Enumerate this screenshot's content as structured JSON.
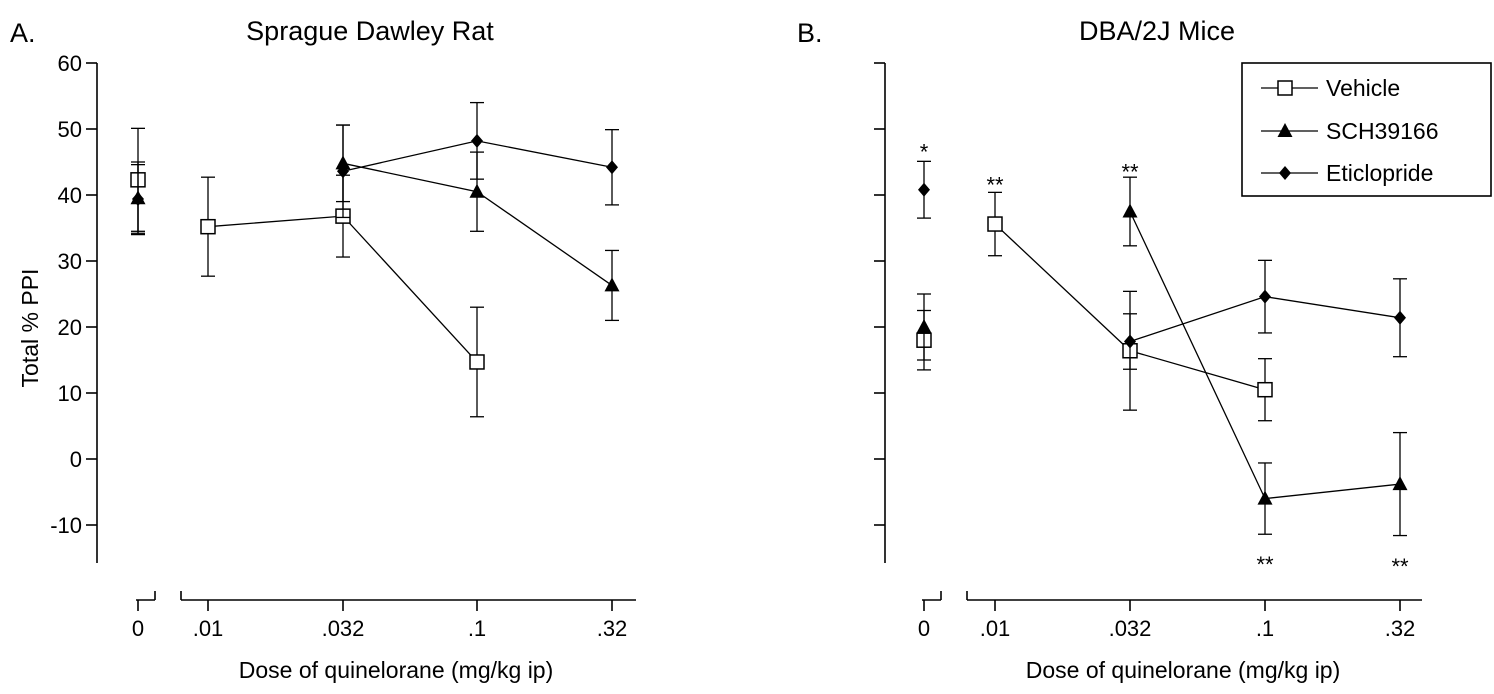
{
  "chart_data": [
    {
      "type": "line",
      "panel_label": "A.",
      "title": "Sprague Dawley Rat",
      "xlabel": "Dose of quinelorane (mg/kg ip)",
      "ylabel": "Total % PPI",
      "categories": [
        "0",
        ".01",
        ".032",
        ".1",
        ".32"
      ],
      "ylim": [
        -15,
        60
      ],
      "yticks": [
        "60",
        "50",
        "40",
        "30",
        "20",
        "10",
        "0",
        "-10"
      ],
      "ytick_values": [
        60,
        50,
        40,
        30,
        20,
        10,
        0,
        -10
      ],
      "series": [
        {
          "name": "Vehicle",
          "marker": "open-square",
          "x": [
            "0",
            ".01",
            ".032",
            ".1"
          ],
          "values": [
            42.3,
            35.2,
            36.8,
            14.7
          ],
          "errors": [
            7.8,
            7.5,
            6.2,
            8.3
          ],
          "connect_from": 1
        },
        {
          "name": "SCH39166",
          "marker": "filled-triangle",
          "x": [
            "0",
            ".032",
            ".1",
            ".32"
          ],
          "values": [
            39.5,
            44.8,
            40.5,
            26.3
          ],
          "errors": [
            5.5,
            5.8,
            6.0,
            5.3
          ],
          "connect_from": 1
        },
        {
          "name": "Eticlopride",
          "marker": "filled-diamond",
          "x": [
            "0",
            ".032",
            ".1",
            ".32"
          ],
          "values": [
            39.4,
            43.6,
            48.2,
            44.2
          ],
          "errors": [
            5.2,
            7.0,
            5.8,
            5.7
          ],
          "connect_from": 1
        }
      ],
      "annotations": []
    },
    {
      "type": "line",
      "panel_label": "B.",
      "title": "DBA/2J Mice",
      "xlabel": "Dose of quinelorane (mg/kg ip)",
      "ylabel": "",
      "categories": [
        "0",
        ".01",
        ".032",
        ".1",
        ".32"
      ],
      "ylim": [
        -15,
        60
      ],
      "yticks": [],
      "ytick_values": [
        60,
        50,
        40,
        30,
        20,
        10,
        0,
        -10
      ],
      "legend": "top-right",
      "series": [
        {
          "name": "Vehicle",
          "marker": "open-square",
          "x": [
            "0",
            ".01",
            ".032",
            ".1"
          ],
          "values": [
            18.0,
            35.6,
            16.4,
            10.5
          ],
          "errors": [
            4.5,
            4.8,
            9.0,
            4.7
          ],
          "connect_from": 1
        },
        {
          "name": "SCH39166",
          "marker": "filled-triangle",
          "x": [
            "0",
            ".032",
            ".1",
            ".32"
          ],
          "values": [
            20.0,
            37.5,
            -6.0,
            -3.8
          ],
          "errors": [
            5.0,
            5.2,
            5.4,
            7.8
          ],
          "connect_from": 1
        },
        {
          "name": "Eticlopride",
          "marker": "filled-diamond",
          "x": [
            "0",
            ".032",
            ".1",
            ".32"
          ],
          "values": [
            40.8,
            17.8,
            24.6,
            21.4
          ],
          "errors": [
            4.3,
            4.2,
            5.5,
            5.9
          ],
          "connect_from": 1
        }
      ],
      "annotations": [
        {
          "text": "*",
          "x": "0",
          "y": 47.5
        },
        {
          "text": "**",
          "x": ".01",
          "y": 42.5
        },
        {
          "text": "**",
          "x": ".032",
          "y": 44.5
        },
        {
          "text": "**",
          "x": ".1",
          "y": -15.0
        },
        {
          "text": "**",
          "x": ".32",
          "y": -15.3
        }
      ]
    }
  ]
}
